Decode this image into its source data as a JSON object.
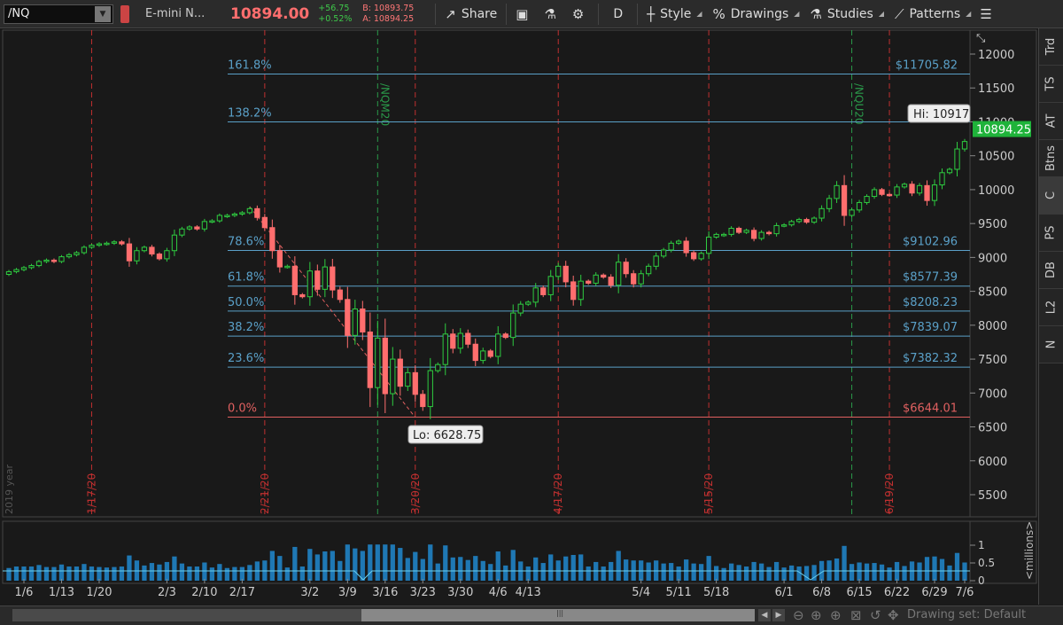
{
  "toolbar": {
    "symbol": "/NQ",
    "description": "E-mini N...",
    "last_price": "10894.00",
    "change": "+56.75",
    "change_pct": "+0.52%",
    "bid": "B: 10893.75",
    "ask": "A: 10894.25",
    "share_label": "Share",
    "timeframe_label": "D",
    "style_label": "Style",
    "drawings_label": "Drawings",
    "studies_label": "Studies",
    "patterns_label": "Patterns"
  },
  "right_tabs": [
    "Trd",
    "TS",
    "AT",
    "Btns",
    "C",
    "PS",
    "DB",
    "L2",
    "N"
  ],
  "right_tab_active": "C",
  "chart": {
    "price_axis_labels": [
      "12000",
      "11500",
      "11000",
      "10500",
      "10000",
      "9500",
      "9000",
      "8500",
      "8000",
      "7500",
      "7000",
      "6500",
      "6000",
      "5500"
    ],
    "current_price_label": "10894.25",
    "hi_label": "Hi: 10917",
    "lo_label": "Lo: 6628.75",
    "year_label": "2019 year",
    "date_labels": [
      "1/6",
      "1/13",
      "1/20",
      "2/3",
      "2/10",
      "2/17",
      "3/2",
      "3/9",
      "3/16",
      "3/23",
      "3/30",
      "4/6",
      "4/13",
      "5/4",
      "5/11",
      "5/18",
      "6/1",
      "6/8",
      "6/15",
      "6/22",
      "6/29",
      "7/6"
    ],
    "marker_labels_red": [
      "1/17/20",
      "2/21/20",
      "3/20/20",
      "4/17/20",
      "5/15/20",
      "6/19/20"
    ],
    "marker_labels_green": [
      "/NQM20",
      "/NQU20"
    ],
    "fib_levels": [
      {
        "pct": "161.8%",
        "price": "$11705.82"
      },
      {
        "pct": "138.2%",
        "price": "$"
      },
      {
        "pct": "78.6%",
        "price": "$9102.96"
      },
      {
        "pct": "61.8%",
        "price": "$8577.39"
      },
      {
        "pct": "50.0%",
        "price": "$8208.23"
      },
      {
        "pct": "38.2%",
        "price": "$7839.07"
      },
      {
        "pct": "23.6%",
        "price": "$7382.32"
      },
      {
        "pct": "0.0%",
        "price": "$6644.01"
      }
    ],
    "volume_axis_labels": [
      "1",
      "0.5",
      "0"
    ],
    "volume_unit_label": "<millions>",
    "colors": {
      "up": "#2ecc40",
      "down": "#ff6e6e",
      "fib": "#5aa0c8",
      "fib_zero": "#e06060",
      "marker_red": "#c03030",
      "marker_green": "#2a9a4a",
      "volume": "#1f78b4"
    }
  },
  "chart_data": {
    "type": "candlestick",
    "title": "",
    "x": [
      "1/2",
      "1/3",
      "1/6",
      "1/7",
      "1/8",
      "1/9",
      "1/10",
      "1/13",
      "1/14",
      "1/15",
      "1/16",
      "1/17",
      "1/21",
      "1/22",
      "1/23",
      "1/24",
      "1/27",
      "1/28",
      "1/29",
      "1/30",
      "1/31",
      "2/3",
      "2/4",
      "2/5",
      "2/6",
      "2/7",
      "2/10",
      "2/11",
      "2/12",
      "2/13",
      "2/14",
      "2/18",
      "2/19",
      "2/20",
      "2/21",
      "2/24",
      "2/25",
      "2/26",
      "2/27",
      "2/28",
      "3/2",
      "3/3",
      "3/4",
      "3/5",
      "3/6",
      "3/9",
      "3/10",
      "3/11",
      "3/12",
      "3/13",
      "3/16",
      "3/17",
      "3/18",
      "3/19",
      "3/20",
      "3/23",
      "3/24",
      "3/25",
      "3/26",
      "3/27",
      "3/30",
      "3/31",
      "4/1",
      "4/2",
      "4/3",
      "4/6",
      "4/7",
      "4/8",
      "4/9",
      "4/13",
      "4/14",
      "4/15",
      "4/16",
      "4/17",
      "4/20",
      "4/21",
      "4/22",
      "4/23",
      "4/24",
      "4/27",
      "4/28",
      "4/29",
      "4/30",
      "5/1",
      "5/4",
      "5/5",
      "5/6",
      "5/7",
      "5/8",
      "5/11",
      "5/12",
      "5/13",
      "5/14",
      "5/15",
      "5/18",
      "5/19",
      "5/20",
      "5/21",
      "5/22",
      "5/26",
      "5/27",
      "5/28",
      "5/29",
      "6/1",
      "6/2",
      "6/3",
      "6/4",
      "6/5",
      "6/8",
      "6/9",
      "6/10",
      "6/11",
      "6/12",
      "6/15",
      "6/16",
      "6/17",
      "6/18",
      "6/19",
      "6/22",
      "6/23",
      "6/24",
      "6/25",
      "6/26",
      "6/29",
      "6/30",
      "7/1",
      "7/2",
      "7/6"
    ],
    "close": [
      8790,
      8820,
      8850,
      8880,
      8940,
      8960,
      8940,
      9010,
      9040,
      9070,
      9150,
      9180,
      9200,
      9210,
      9230,
      9200,
      8950,
      9100,
      9150,
      9050,
      8980,
      9100,
      9330,
      9420,
      9450,
      9420,
      9530,
      9540,
      9620,
      9620,
      9640,
      9660,
      9720,
      9590,
      9440,
      9100,
      8860,
      8870,
      8450,
      8420,
      8800,
      8530,
      8860,
      8520,
      8380,
      7850,
      8240,
      7900,
      7080,
      7810,
      6990,
      7500,
      7100,
      7300,
      6980,
      6800,
      7330,
      7420,
      7870,
      7660,
      7880,
      7720,
      7480,
      7620,
      7540,
      7870,
      7820,
      8180,
      8310,
      8340,
      8550,
      8450,
      8720,
      8870,
      8640,
      8380,
      8650,
      8620,
      8740,
      8710,
      8590,
      8930,
      8760,
      8610,
      8760,
      8870,
      9020,
      9110,
      9210,
      9240,
      9070,
      8980,
      9060,
      9300,
      9340,
      9340,
      9430,
      9370,
      9400,
      9280,
      9370,
      9350,
      9470,
      9480,
      9530,
      9560,
      9520,
      9580,
      9720,
      9870,
      10060,
      9620,
      9700,
      9810,
      9900,
      10000,
      9930,
      9920,
      10040,
      10080,
      9950,
      10060,
      9840,
      10070,
      10250,
      10300,
      10600,
      10710
    ]
  }
}
